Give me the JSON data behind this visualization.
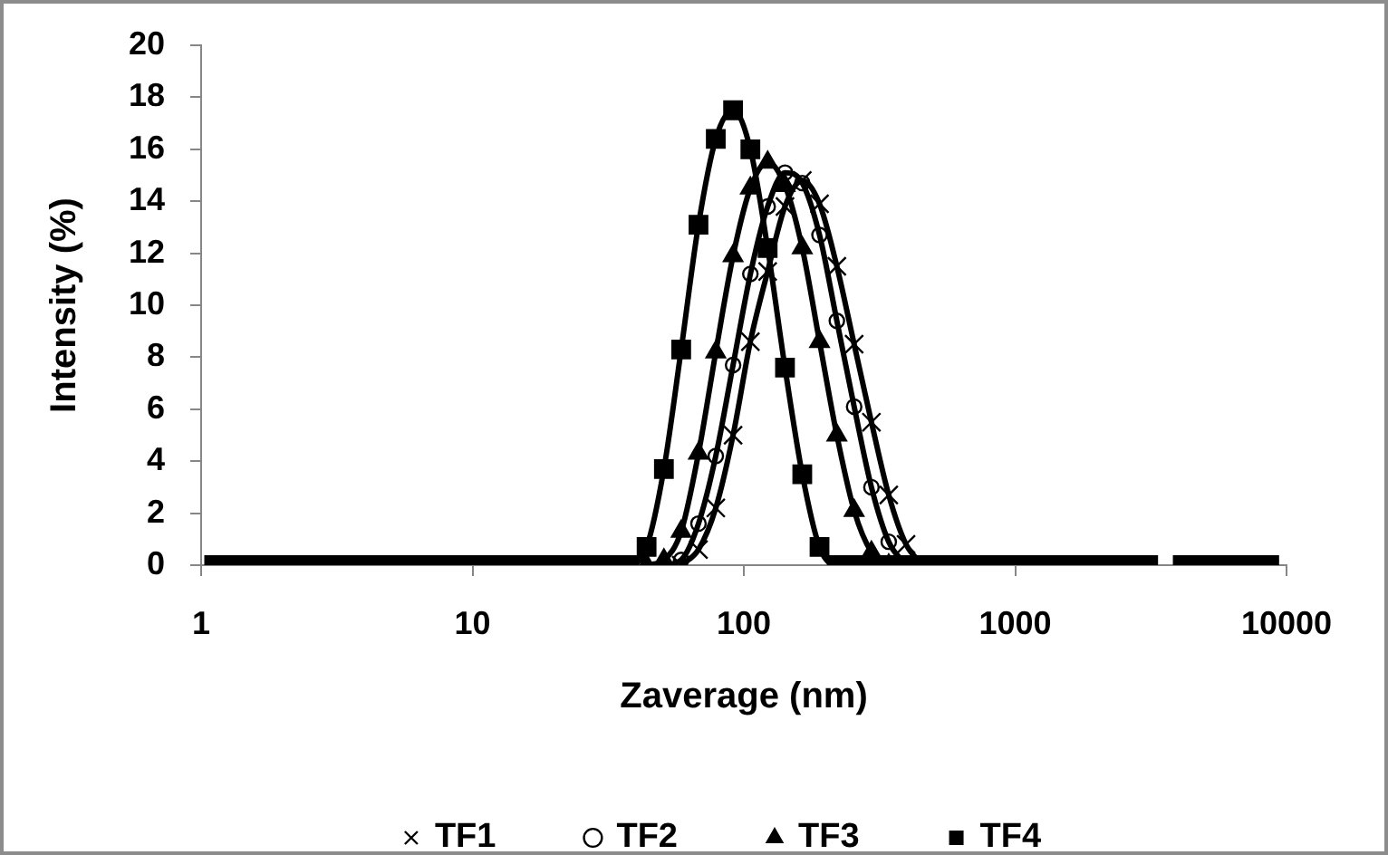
{
  "chart_data": {
    "type": "line",
    "xlabel": "Zaverage (nm)",
    "ylabel": "Intensity (%)",
    "log": "x",
    "xlim": [
      1,
      10000
    ],
    "xticks": [
      1,
      10,
      100,
      1000,
      10000
    ],
    "ylim": [
      0,
      20
    ],
    "yticks": [
      0,
      2,
      4,
      6,
      8,
      10,
      12,
      14,
      16,
      18,
      20
    ],
    "grid": false,
    "legend": "bottom",
    "line_style": "solid",
    "x": [
      1.117,
      1.294,
      1.499,
      1.736,
      2.01,
      2.328,
      2.696,
      3.122,
      3.615,
      4.187,
      4.849,
      5.615,
      6.503,
      7.531,
      8.721,
      10.1,
      11.7,
      13.54,
      15.69,
      18.17,
      21.04,
      24.36,
      28.21,
      32.67,
      37.84,
      43.82,
      50.75,
      58.77,
      68.06,
      78.82,
      91.28,
      105.7,
      122.4,
      141.8,
      164.2,
      190.1,
      220.2,
      255,
      295.3,
      342,
      396.1,
      458.7,
      531.2,
      615.1,
      712.4,
      825,
      955.4,
      1106,
      1281,
      1484,
      1718,
      1990,
      2305,
      2669,
      3091,
      3580,
      4145,
      4801,
      5560,
      6439,
      7456,
      8635
    ],
    "series": [
      {
        "name": "TF1",
        "color": "#000000",
        "marker": "cross",
        "values": [
          null,
          null,
          null,
          null,
          null,
          null,
          null,
          null,
          null,
          null,
          null,
          null,
          null,
          null,
          null,
          null,
          null,
          null,
          null,
          null,
          null,
          null,
          null,
          null,
          null,
          null,
          null,
          0,
          0.6,
          2.2,
          5,
          8.6,
          11.3,
          13.8,
          14.8,
          13.9,
          11.5,
          8.5,
          5.5,
          2.7,
          0.8,
          0,
          null,
          null,
          null,
          null,
          null,
          null,
          null,
          null,
          null,
          null,
          null,
          null,
          null,
          null,
          null,
          null,
          null,
          null,
          null,
          null
        ]
      },
      {
        "name": "TF2",
        "color": "#000000",
        "marker": "circle",
        "values": [
          null,
          null,
          null,
          null,
          null,
          null,
          null,
          null,
          null,
          null,
          null,
          null,
          null,
          null,
          null,
          null,
          null,
          null,
          null,
          null,
          null,
          null,
          null,
          null,
          null,
          null,
          0,
          0.2,
          1.6,
          4.2,
          7.7,
          11.2,
          13.8,
          15.1,
          14.7,
          12.7,
          9.4,
          6.1,
          3,
          0.9,
          0,
          null,
          null,
          null,
          null,
          null,
          null,
          null,
          null,
          null,
          null,
          null,
          null,
          null,
          null,
          null,
          null,
          null,
          null,
          null,
          null,
          null
        ]
      },
      {
        "name": "TF3",
        "color": "#000000",
        "marker": "triangle",
        "values": [
          null,
          null,
          null,
          null,
          null,
          null,
          null,
          null,
          null,
          null,
          null,
          null,
          null,
          null,
          null,
          null,
          null,
          null,
          null,
          null,
          null,
          null,
          null,
          null,
          null,
          0,
          0.2,
          1.3,
          4.3,
          8.2,
          11.9,
          14.5,
          15.5,
          14.6,
          12.2,
          8.6,
          5,
          2.1,
          0.5,
          0,
          null,
          null,
          null,
          null,
          null,
          null,
          null,
          null,
          null,
          null,
          null,
          null,
          null,
          null,
          null,
          null,
          null,
          null,
          null,
          null,
          null,
          null
        ]
      },
      {
        "name": "TF4",
        "color": "#000000",
        "marker": "square",
        "values": [
          0,
          0,
          0,
          0,
          0,
          0,
          0,
          0,
          0,
          0,
          0,
          0,
          0,
          0,
          0,
          0,
          0,
          0,
          0,
          0,
          0,
          0,
          0,
          0,
          0,
          0.7,
          3.7,
          8.3,
          13.1,
          16.4,
          17.5,
          16,
          12.2,
          7.6,
          3.5,
          0.7,
          0,
          0,
          0,
          0,
          0,
          0,
          0,
          0,
          0,
          0,
          0,
          0,
          0,
          0,
          0,
          0,
          0,
          0,
          0,
          null,
          0,
          0,
          0,
          0,
          0,
          0
        ]
      }
    ]
  }
}
